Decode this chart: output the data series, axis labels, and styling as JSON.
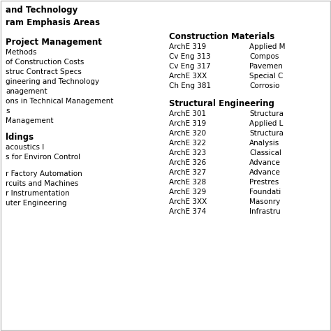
{
  "title_line1": "and Technology",
  "title_line2": "ram Emphasis Areas",
  "left_col": {
    "section1_header": "Project Management",
    "section1_items": [
      "Methods",
      "of Construction Costs",
      "struc Contract Specs",
      "gineering and Technology",
      "anagement",
      "ons in Technical Management",
      "s",
      "Management"
    ],
    "section2_header": "ldings",
    "section2_items_a": [
      "acoustics I",
      "s for Environ Control"
    ],
    "section2_items_b": [
      "r Factory Automation",
      "rcuits and Machines",
      "r Instrumentation",
      "uter Engineering"
    ]
  },
  "right_col": {
    "section1_header": "Construction Materials",
    "section1_items": [
      [
        "ArchE 319",
        "Applied M"
      ],
      [
        "Cv Eng 313",
        "Compos"
      ],
      [
        "Cv Eng 317",
        "Pavemen"
      ],
      [
        "ArchE 3XX",
        "Special C"
      ],
      [
        "Ch Eng 381",
        "Corrosio"
      ]
    ],
    "section2_header": "Structural Engineering",
    "section2_items": [
      [
        "ArchE 301",
        "Structura"
      ],
      [
        "ArchE 319",
        "Applied L"
      ],
      [
        "ArchE 320",
        "Structura"
      ],
      [
        "ArchE 322",
        "Analysis"
      ],
      [
        "ArchE 323",
        "Classical"
      ],
      [
        "ArchE 326",
        "Advance"
      ],
      [
        "ArchE 327",
        "Advance"
      ],
      [
        "ArchE 328",
        "Prestres"
      ],
      [
        "ArchE 329",
        "Foundati"
      ],
      [
        "ArchE 3XX",
        "Masonry"
      ],
      [
        "ArchE 374",
        "Infrastru"
      ]
    ]
  },
  "bg_color": "#ffffff",
  "border_color": "#c0c0c0",
  "text_color": "#000000",
  "header_color": "#000000",
  "title_fontsize": 8.5,
  "header_fontsize": 8.5,
  "body_fontsize": 7.5
}
